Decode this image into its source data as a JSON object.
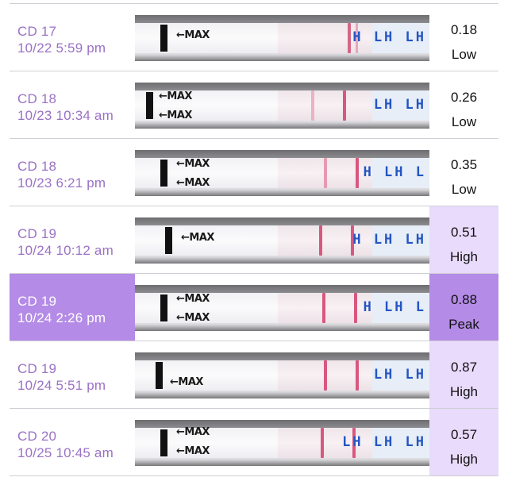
{
  "tests": [
    {
      "cycle_day": "CD 17",
      "datetime": "10/22 5:59 pm",
      "reading": "0.18",
      "level": "Low",
      "strip_text": "←MAX",
      "strip_text2": "",
      "lh_text": "H LH LH"
    },
    {
      "cycle_day": "CD 18",
      "datetime": "10/23 10:34 am",
      "reading": "0.26",
      "level": "Low",
      "strip_text": "←MAX",
      "strip_text2": "←MAX",
      "lh_text": "LH LH"
    },
    {
      "cycle_day": "CD 18",
      "datetime": "10/23 6:21 pm",
      "reading": "0.35",
      "level": "Low",
      "strip_text": "←MAX",
      "strip_text2": "←MAX",
      "lh_text": "H LH L"
    },
    {
      "cycle_day": "CD 19",
      "datetime": "10/24 10:12 am",
      "reading": "0.51",
      "level": "High",
      "strip_text": "←MAX",
      "strip_text2": "",
      "lh_text": "H LH LH"
    },
    {
      "cycle_day": "CD 19",
      "datetime": "10/24 2:26 pm",
      "reading": "0.88",
      "level": "Peak",
      "strip_text": "←MAX",
      "strip_text2": "←MAX",
      "lh_text": "H LH L"
    },
    {
      "cycle_day": "CD 19",
      "datetime": "10/24 5:51 pm",
      "reading": "0.87",
      "level": "High",
      "strip_text": "←MAX",
      "strip_text2": "",
      "lh_text": "LH LH"
    },
    {
      "cycle_day": "CD 20",
      "datetime": "10/25 10:45 am",
      "reading": "0.57",
      "level": "High",
      "strip_text": "←MAX",
      "strip_text2": "←MAX",
      "lh_text": "LH LH LH"
    }
  ],
  "colors": {
    "label_text": "#9b72c6",
    "peak_highlight": "#b48be6",
    "high_highlight": "#e9dbfb",
    "test_line": "#d9577f",
    "lh_marking": "#2455c3"
  }
}
